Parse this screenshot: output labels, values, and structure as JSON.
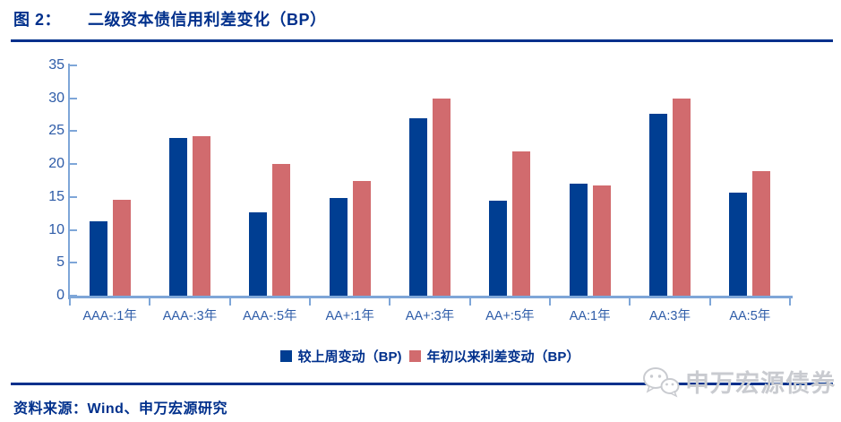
{
  "header": {
    "figure_label": "图 2：",
    "title": "二级资本债信用利差变化（BP）"
  },
  "chart_data": {
    "type": "bar",
    "title": "二级资本债信用利差变化（BP）",
    "categories": [
      "AAA-:1年",
      "AAA-:3年",
      "AAA-:5年",
      "AA+:1年",
      "AA+:3年",
      "AA+:5年",
      "AA:1年",
      "AA:3年",
      "AA:5年"
    ],
    "series": [
      {
        "name": "较上周变动（BP)",
        "color": "#003E92",
        "values": [
          11.3,
          24.0,
          12.7,
          14.8,
          26.9,
          14.5,
          17.0,
          27.7,
          15.7
        ]
      },
      {
        "name": "年初以来利差变动（BP）",
        "color": "#D16B6E",
        "values": [
          14.6,
          24.3,
          20.0,
          17.5,
          30.0,
          21.9,
          16.7,
          30.0,
          18.9
        ]
      }
    ],
    "xlabel": "",
    "ylabel": "",
    "ylim": [
      0,
      35
    ],
    "ytick_step": 5,
    "grid": false,
    "legend_position": "bottom"
  },
  "footer": {
    "source": "资料来源：Wind、申万宏源研究",
    "watermark": "申万宏源债券",
    "watermark_icon": "wechat-icon"
  },
  "colors": {
    "title_navy": "#00308C",
    "series_blue": "#003E92",
    "series_pink": "#D16B6E",
    "axis_blue": "#7EA6D8",
    "tick_label_blue": "#2E5CA8",
    "watermark_gray": "#C9CBD0"
  }
}
